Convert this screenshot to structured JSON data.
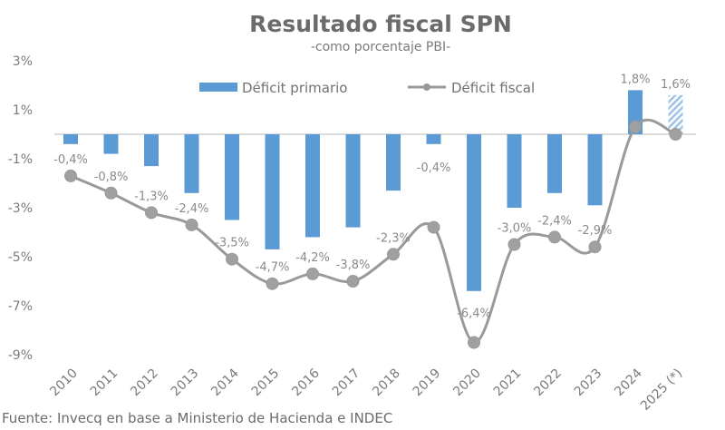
{
  "chart_data": {
    "type": "bar",
    "title": "Resultado fiscal SPN",
    "subtitle": "-como porcentaje PBI-",
    "categories": [
      "2010",
      "2011",
      "2012",
      "2013",
      "2014",
      "2015",
      "2016",
      "2017",
      "2018",
      "2019",
      "2020",
      "2021",
      "2022",
      "2023",
      "2024",
      "2025 (*)"
    ],
    "series": [
      {
        "name": "Déficit primario",
        "type": "bar",
        "color": "#5b9bd5",
        "values": [
          -0.4,
          -0.8,
          -1.3,
          -2.4,
          -3.5,
          -4.7,
          -4.2,
          -3.8,
          -2.3,
          -0.4,
          -6.4,
          -3.0,
          -2.4,
          -2.9,
          1.8,
          1.6
        ],
        "labels": [
          "-0,4%",
          "-0,8%",
          "-1,3%",
          "-2,4%",
          "-3,5%",
          "-4,7%",
          "-4,2%",
          "-3,8%",
          "-2,3%",
          "-0,4%",
          "-6,4%",
          "-3,0%",
          "-2,4%",
          "-2,9%",
          "1,8%",
          "1,6%"
        ],
        "projected": [
          false,
          false,
          false,
          false,
          false,
          false,
          false,
          false,
          false,
          false,
          false,
          false,
          false,
          false,
          false,
          true
        ]
      },
      {
        "name": "Déficit fiscal",
        "type": "line",
        "color": "#999999",
        "values": [
          -1.7,
          -2.4,
          -3.2,
          -3.7,
          -5.1,
          -6.1,
          -5.7,
          -6.0,
          -4.9,
          -3.8,
          -8.5,
          -4.5,
          -4.2,
          -4.6,
          0.3,
          0.0
        ]
      }
    ],
    "yticks": [
      "3%",
      "1%",
      "-1%",
      "-3%",
      "-5%",
      "-7%",
      "-9%"
    ],
    "ytick_values": [
      3,
      1,
      -1,
      -3,
      -5,
      -7,
      -9
    ],
    "ylim": [
      -9,
      3
    ],
    "grid": false,
    "legend": "top"
  },
  "source": "Fuente: Invecq en base a Ministerio de Hacienda e INDEC"
}
